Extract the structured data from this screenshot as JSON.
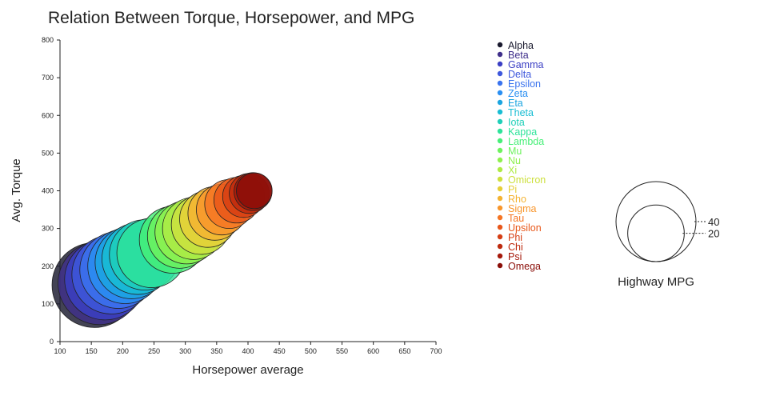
{
  "chart_data": {
    "type": "scatter",
    "title": "Relation Between Torque, Horsepower, and MPG",
    "xlabel": "Horsepower average",
    "ylabel": "Avg. Torque",
    "xlim": [
      100,
      700
    ],
    "ylim": [
      0,
      800
    ],
    "xticks": [
      100,
      150,
      200,
      250,
      300,
      350,
      400,
      450,
      500,
      550,
      600,
      650,
      700
    ],
    "yticks": [
      0,
      100,
      200,
      300,
      400,
      500,
      600,
      700,
      800
    ],
    "grid": false,
    "legend_position": "right",
    "size_legend": {
      "title": "Highway MPG",
      "values": [
        40,
        20
      ]
    },
    "series": [
      {
        "name": "Alpha",
        "x": 155,
        "y": 150,
        "size": 45,
        "color": "#1a1a2e"
      },
      {
        "name": "Beta",
        "x": 163,
        "y": 155,
        "size": 43,
        "color": "#3f2f8a"
      },
      {
        "name": "Gamma",
        "x": 172,
        "y": 165,
        "size": 41,
        "color": "#3b3fc4"
      },
      {
        "name": "Delta",
        "x": 182,
        "y": 178,
        "size": 39,
        "color": "#3e58dc"
      },
      {
        "name": "Epsilon",
        "x": 193,
        "y": 190,
        "size": 37,
        "color": "#3a73ee"
      },
      {
        "name": "Zeta",
        "x": 204,
        "y": 200,
        "size": 35,
        "color": "#2a8ff2"
      },
      {
        "name": "Eta",
        "x": 214,
        "y": 210,
        "size": 33,
        "color": "#1ba5e0"
      },
      {
        "name": "Theta",
        "x": 224,
        "y": 220,
        "size": 32,
        "color": "#19bdd3"
      },
      {
        "name": "Iota",
        "x": 235,
        "y": 230,
        "size": 31,
        "color": "#1fcfb8"
      },
      {
        "name": "Kappa",
        "x": 246,
        "y": 235,
        "size": 30,
        "color": "#2ee39a"
      },
      {
        "name": "Lambda",
        "x": 280,
        "y": 270,
        "size": 28,
        "color": "#47ef78"
      },
      {
        "name": "Mu",
        "x": 291,
        "y": 280,
        "size": 26,
        "color": "#6ef25e"
      },
      {
        "name": "Nu",
        "x": 302,
        "y": 290,
        "size": 25,
        "color": "#8ff04e"
      },
      {
        "name": "Xi",
        "x": 313,
        "y": 300,
        "size": 24,
        "color": "#aeea44"
      },
      {
        "name": "Omicron",
        "x": 325,
        "y": 310,
        "size": 22,
        "color": "#cde03e"
      },
      {
        "name": "Pi",
        "x": 336,
        "y": 325,
        "size": 20,
        "color": "#e6cf38"
      },
      {
        "name": "Rho",
        "x": 347,
        "y": 340,
        "size": 18,
        "color": "#f4b332"
      },
      {
        "name": "Sigma",
        "x": 358,
        "y": 350,
        "size": 16,
        "color": "#f8962c"
      },
      {
        "name": "Tau",
        "x": 370,
        "y": 365,
        "size": 15,
        "color": "#f57523"
      },
      {
        "name": "Upsilon",
        "x": 382,
        "y": 375,
        "size": 13,
        "color": "#e8571a"
      },
      {
        "name": "Phi",
        "x": 393,
        "y": 385,
        "size": 11,
        "color": "#d53e14"
      },
      {
        "name": "Chi",
        "x": 402,
        "y": 393,
        "size": 10,
        "color": "#bd2a0e"
      },
      {
        "name": "Psi",
        "x": 408,
        "y": 398,
        "size": 9,
        "color": "#a5190b"
      },
      {
        "name": "Omega",
        "x": 410,
        "y": 400,
        "size": 8,
        "color": "#8a0e08"
      }
    ]
  }
}
